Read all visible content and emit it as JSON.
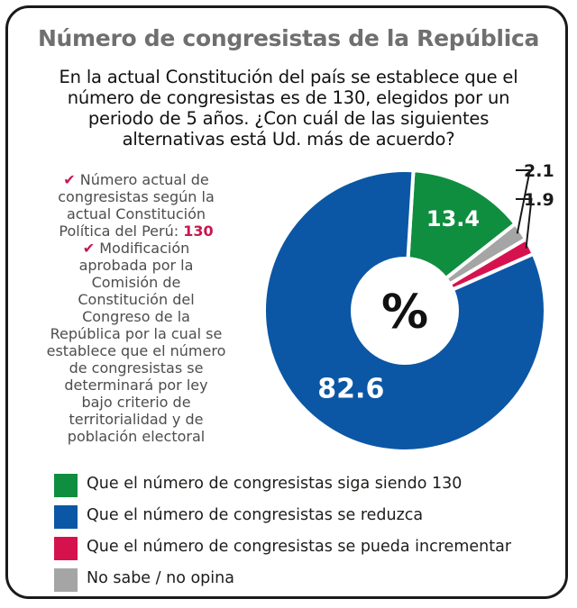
{
  "title": "Número de congresistas de la República",
  "question": [
    "En la actual Constitución del país se establece que el",
    "número de congresistas es de 130, elegidos por un",
    "periodo de 5 años. ¿Con cuál de las siguientes",
    "alternativas está Ud. más de acuerdo?"
  ],
  "notes": {
    "note1_lines": [
      "Número actual de",
      "congresistas según la",
      "actual Constitución"
    ],
    "note1_last_prefix": "Política del Perú: ",
    "note1_highlight": "130",
    "note2_lines": [
      "Modificación",
      "aprobada por la",
      "Comisión de",
      "Constitución del",
      "Congreso de la",
      "República por la cual se",
      "establece que el número",
      "de congresistas se",
      "determinará por ley",
      "bajo criterio de",
      "territorialidad y de",
      "población electoral"
    ]
  },
  "chart_data": {
    "type": "pie",
    "center_label": "%",
    "slices": [
      {
        "label": "Que el número de congresistas siga siendo 130",
        "value": 13.4,
        "display": "13.4",
        "color": "#0f8e3f"
      },
      {
        "label": "No sabe / no opina",
        "value": 2.1,
        "display": "2.1",
        "color": "#a5a5a5"
      },
      {
        "label": "Que el número de congresistas se pueda incrementar",
        "value": 1.9,
        "display": "1.9",
        "color": "#d6124e"
      },
      {
        "label": "Que el número de congresistas se reduzca",
        "value": 82.6,
        "display": "82.6",
        "color": "#0b57a5"
      }
    ]
  },
  "legend": [
    {
      "label": "Que el número de congresistas siga siendo 130",
      "color": "#0f8e3f"
    },
    {
      "label": "Que el número de congresistas se reduzca",
      "color": "#0b57a5"
    },
    {
      "label": "Que el número de congresistas se pueda incrementar",
      "color": "#d6124e"
    },
    {
      "label": "No sabe / no opina",
      "color": "#a5a5a5"
    }
  ]
}
